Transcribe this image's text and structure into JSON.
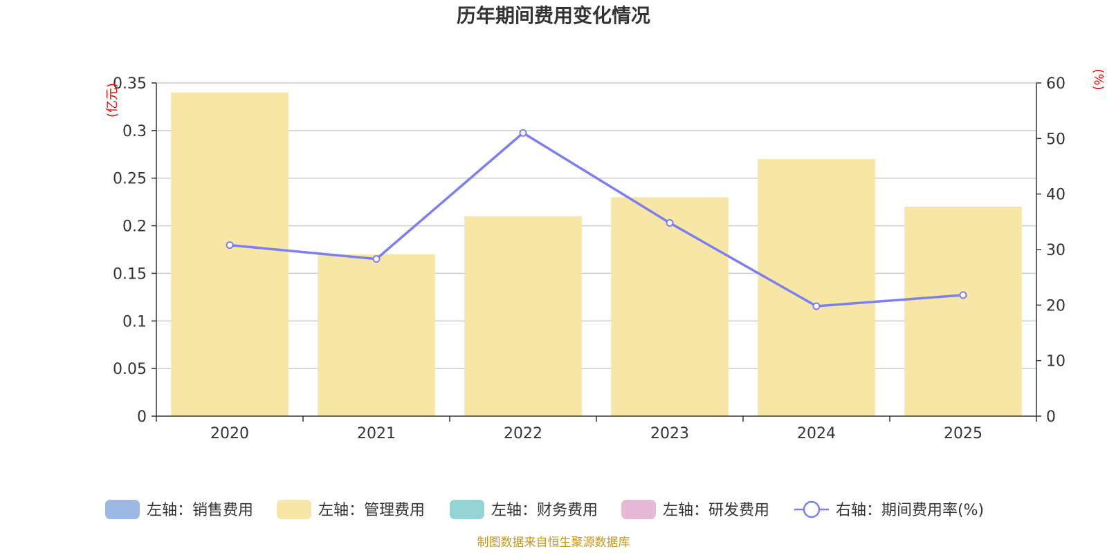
{
  "chart_data": {
    "type": "bar+line",
    "title": "历年期间费用变化情况",
    "categories": [
      "2020",
      "2021",
      "2022",
      "2023",
      "2024",
      "2025"
    ],
    "series": [
      {
        "name": "左轴：销售费用",
        "axis": "left",
        "kind": "bar",
        "color": "#9db8e3",
        "values": [
          null,
          null,
          null,
          null,
          null,
          null
        ]
      },
      {
        "name": "左轴：管理费用",
        "axis": "left",
        "kind": "bar",
        "color": "#f7e6a6",
        "values": [
          0.34,
          0.17,
          0.21,
          0.23,
          0.27,
          0.22
        ]
      },
      {
        "name": "左轴：财务费用",
        "axis": "left",
        "kind": "bar",
        "color": "#94d4d4",
        "values": [
          null,
          null,
          null,
          null,
          null,
          null
        ]
      },
      {
        "name": "左轴：研发费用",
        "axis": "left",
        "kind": "bar",
        "color": "#e8b8d8",
        "values": [
          null,
          null,
          null,
          null,
          null,
          null
        ]
      },
      {
        "name": "右轴：期间费用率(%)",
        "axis": "right",
        "kind": "line",
        "color": "#7b7ff0",
        "values": [
          30.8,
          28.3,
          51.0,
          34.8,
          19.8,
          21.8
        ]
      }
    ],
    "left_axis": {
      "unit": "(亿元)",
      "min": 0,
      "max": 0.35,
      "ticks": [
        "0",
        "0.05",
        "0.1",
        "0.15",
        "0.2",
        "0.25",
        "0.3",
        "0.35"
      ]
    },
    "right_axis": {
      "unit": "(%)",
      "min": 0,
      "max": 60,
      "ticks": [
        "0",
        "10",
        "20",
        "30",
        "40",
        "50",
        "60"
      ]
    },
    "grid": true,
    "legend_position": "bottom"
  },
  "source": "制图数据来自恒生聚源数据库"
}
